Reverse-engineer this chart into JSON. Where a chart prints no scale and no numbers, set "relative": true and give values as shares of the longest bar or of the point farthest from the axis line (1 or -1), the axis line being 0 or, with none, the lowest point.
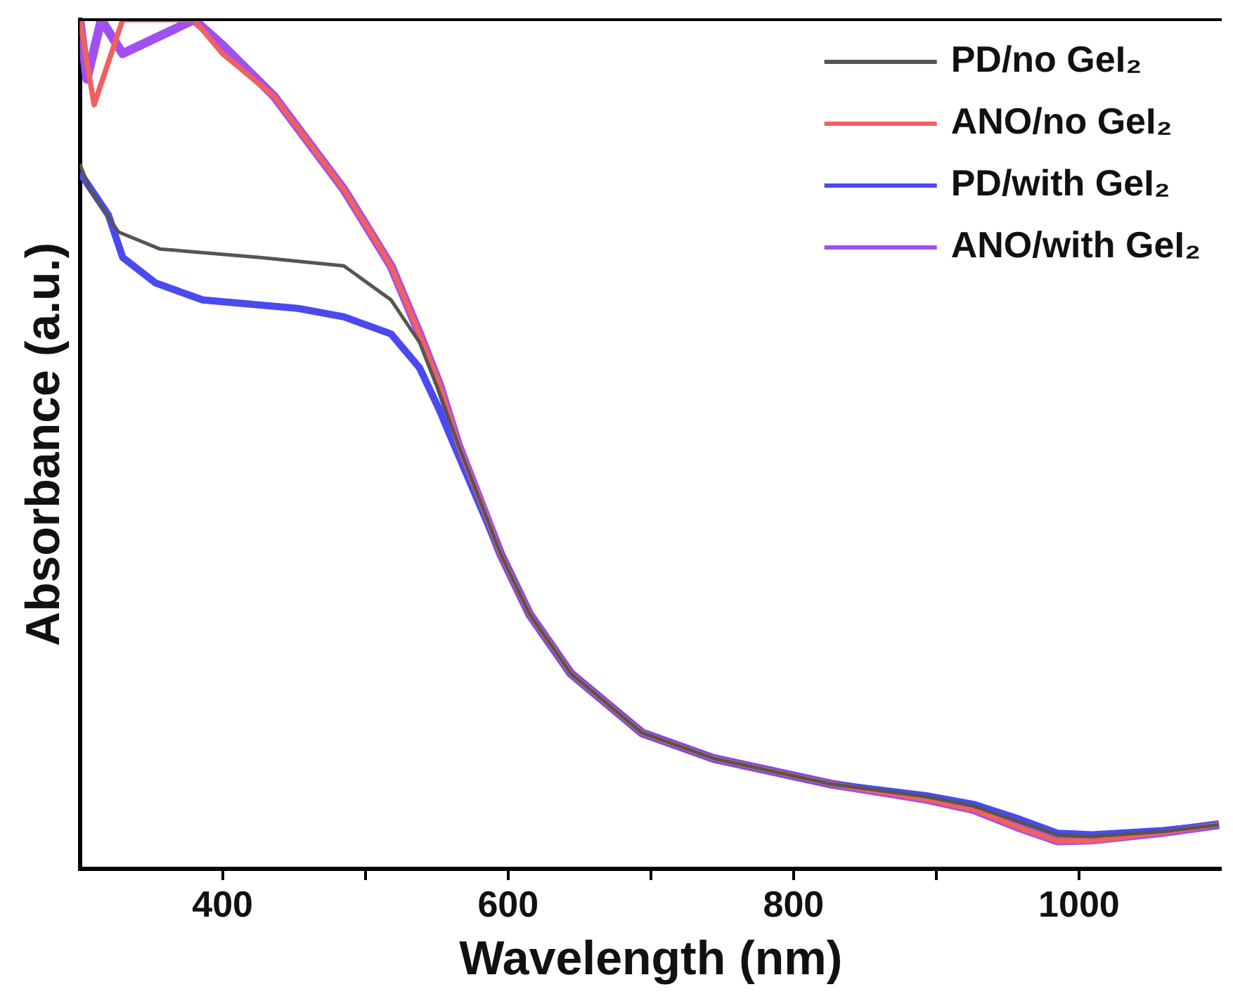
{
  "chart_data": {
    "type": "line",
    "xlabel": "Wavelength (nm)",
    "ylabel": "Absorbance (a.u.)",
    "relative": true,
    "xlim": [
      300,
      1100
    ],
    "xticks": [
      400,
      {
        "value": 500,
        "label": null
      },
      600,
      {
        "value": 700,
        "label": null
      },
      800,
      {
        "value": 900,
        "label": null
      },
      1000
    ],
    "legend": "top right",
    "grid": false,
    "marker": "none",
    "line_style": "solid",
    "series": [
      {
        "name": "PD/no GeI₂",
        "color": "#555555",
        "x": [
          300,
          307,
          327,
          356,
          426,
          485,
          518,
          538,
          552,
          565,
          595,
          615,
          644,
          694,
          744,
          826,
          893,
          926,
          959,
          985,
          1009,
          1059,
          1098
        ],
        "values": [
          0.83,
          0.8,
          0.75,
          0.73,
          0.72,
          0.71,
          0.67,
          0.62,
          0.56,
          0.5,
          0.37,
          0.3,
          0.23,
          0.16,
          0.13,
          0.1,
          0.085,
          0.074,
          0.055,
          0.04,
          0.038,
          0.044,
          0.052
        ]
      },
      {
        "name": "ANO/no GeI₂",
        "color": "#f06060",
        "x": [
          300,
          305,
          310,
          330,
          380,
          400,
          436,
          485,
          518,
          538,
          552,
          565,
          595,
          615,
          644,
          694,
          744,
          826,
          893,
          926,
          959,
          985,
          1009,
          1059,
          1098
        ],
        "values": [
          1,
          0.95,
          0.9,
          1,
          1,
          0.96,
          0.91,
          0.8,
          0.71,
          0.63,
          0.57,
          0.5,
          0.37,
          0.3,
          0.23,
          0.16,
          0.13,
          0.1,
          0.082,
          0.07,
          0.048,
          0.033,
          0.033,
          0.043,
          0.052
        ]
      },
      {
        "name": "PD/with GeI₂",
        "color": "#4a4af0",
        "x": [
          300,
          320,
          330,
          353,
          386,
          453,
          485,
          518,
          538,
          552,
          562,
          595,
          615,
          644,
          694,
          744,
          826,
          893,
          926,
          959,
          985,
          1009,
          1059,
          1098
        ],
        "values": [
          0.82,
          0.77,
          0.72,
          0.69,
          0.67,
          0.66,
          0.65,
          0.63,
          0.59,
          0.54,
          0.5,
          0.37,
          0.3,
          0.23,
          0.16,
          0.13,
          0.1,
          0.086,
          0.076,
          0.058,
          0.042,
          0.04,
          0.045,
          0.052
        ]
      },
      {
        "name": "ANO/with GeI₂",
        "color": "#a050f0",
        "x": [
          300,
          305,
          315,
          330,
          380,
          400,
          436,
          485,
          518,
          538,
          552,
          565,
          595,
          615,
          644,
          694,
          744,
          826,
          893,
          926,
          959,
          985,
          1009,
          1059,
          1098
        ],
        "values": [
          1,
          0.93,
          1,
          0.96,
          1,
          0.97,
          0.91,
          0.8,
          0.71,
          0.63,
          0.57,
          0.5,
          0.37,
          0.3,
          0.23,
          0.16,
          0.13,
          0.1,
          0.082,
          0.07,
          0.048,
          0.033,
          0.034,
          0.043,
          0.052
        ]
      }
    ]
  }
}
